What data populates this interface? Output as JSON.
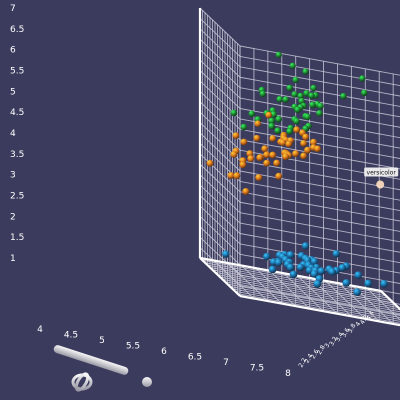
{
  "chart_data": {
    "type": "scatter",
    "title": "",
    "xlabel": "",
    "ylabel": "",
    "zlabel": "",
    "xlim": [
      4,
      8
    ],
    "ylim": [
      1,
      7
    ],
    "zlim": [
      2,
      4.6
    ],
    "x_ticks": [
      "4",
      "4.5",
      "5",
      "5.5",
      "6",
      "6.5",
      "7",
      "7.5",
      "8"
    ],
    "y_ticks": [
      "1",
      "1.5",
      "2",
      "2.5",
      "3",
      "3.5",
      "4",
      "4.5",
      "5",
      "5.5",
      "6",
      "6.5",
      "7"
    ],
    "z_ticks": [
      "2.2",
      "2.4",
      "2.6",
      "2.8",
      "3",
      "3.2",
      "3.4",
      "3.6",
      "3.8",
      "4",
      "4.2",
      "4.4"
    ],
    "grid": true,
    "hover_label": "versicolor",
    "series": [
      {
        "color": "#1e6fa8",
        "points": [
          [
            5.1,
            1.4,
            3.5
          ],
          [
            4.9,
            1.4,
            3.0
          ],
          [
            4.7,
            1.3,
            3.2
          ],
          [
            4.6,
            1.5,
            3.1
          ],
          [
            5.0,
            1.4,
            3.6
          ],
          [
            5.4,
            1.7,
            3.9
          ],
          [
            4.6,
            1.4,
            3.4
          ],
          [
            5.0,
            1.5,
            3.4
          ],
          [
            4.4,
            1.4,
            2.9
          ],
          [
            4.9,
            1.5,
            3.1
          ],
          [
            5.4,
            1.5,
            3.7
          ],
          [
            4.8,
            1.6,
            3.4
          ],
          [
            4.8,
            1.4,
            3.0
          ],
          [
            4.3,
            1.1,
            3.0
          ],
          [
            5.8,
            1.2,
            4.0
          ],
          [
            5.7,
            1.5,
            4.4
          ],
          [
            5.4,
            1.3,
            3.9
          ],
          [
            5.1,
            1.4,
            3.5
          ],
          [
            5.7,
            1.7,
            3.8
          ],
          [
            5.1,
            1.5,
            3.8
          ],
          [
            5.4,
            1.7,
            3.4
          ],
          [
            5.1,
            1.5,
            3.7
          ],
          [
            4.6,
            1.0,
            3.6
          ],
          [
            5.1,
            1.7,
            3.3
          ],
          [
            4.8,
            1.9,
            3.4
          ],
          [
            5.0,
            1.6,
            3.0
          ],
          [
            5.0,
            1.6,
            3.4
          ],
          [
            5.2,
            1.5,
            3.5
          ],
          [
            5.2,
            1.4,
            3.4
          ],
          [
            4.7,
            1.6,
            3.2
          ],
          [
            4.8,
            1.6,
            3.1
          ],
          [
            5.4,
            1.5,
            3.4
          ],
          [
            5.2,
            1.5,
            4.1
          ],
          [
            5.5,
            1.4,
            4.2
          ],
          [
            4.9,
            1.5,
            3.1
          ],
          [
            5.0,
            1.2,
            3.2
          ],
          [
            5.5,
            1.3,
            3.5
          ],
          [
            4.4,
            1.3,
            3.0
          ],
          [
            5.1,
            1.5,
            3.4
          ],
          [
            5.0,
            1.3,
            3.5
          ],
          [
            4.5,
            1.3,
            2.3
          ],
          [
            4.4,
            1.3,
            3.2
          ],
          [
            5.0,
            1.6,
            3.5
          ],
          [
            5.1,
            1.9,
            3.8
          ],
          [
            4.8,
            1.4,
            3.0
          ],
          [
            5.3,
            1.5,
            3.7
          ],
          [
            4.6,
            1.4,
            3.2
          ],
          [
            5.0,
            1.4,
            3.3
          ]
        ]
      },
      {
        "color": "#d8741e",
        "points": [
          [
            7.0,
            4.7,
            3.2
          ],
          [
            6.4,
            4.5,
            3.2
          ],
          [
            6.9,
            4.9,
            3.1
          ],
          [
            5.5,
            4.0,
            2.3
          ],
          [
            6.5,
            4.6,
            2.8
          ],
          [
            5.7,
            4.5,
            2.8
          ],
          [
            6.3,
            4.7,
            3.3
          ],
          [
            4.9,
            3.3,
            2.4
          ],
          [
            6.6,
            4.6,
            2.9
          ],
          [
            5.2,
            3.9,
            2.7
          ],
          [
            5.0,
            3.5,
            2.0
          ],
          [
            5.9,
            4.2,
            3.0
          ],
          [
            6.0,
            4.0,
            2.2
          ],
          [
            6.1,
            4.7,
            2.9
          ],
          [
            5.6,
            3.6,
            2.9
          ],
          [
            6.7,
            4.4,
            3.1
          ],
          [
            5.6,
            4.5,
            3.0
          ],
          [
            5.8,
            4.1,
            2.7
          ],
          [
            6.2,
            4.5,
            2.2
          ],
          [
            5.6,
            3.9,
            2.5
          ],
          [
            5.9,
            4.8,
            3.2
          ],
          [
            6.1,
            4.0,
            2.8
          ],
          [
            6.3,
            4.9,
            2.5
          ],
          [
            6.4,
            4.3,
            2.9
          ],
          [
            6.6,
            4.4,
            3.0
          ],
          [
            6.8,
            4.8,
            2.8
          ],
          [
            6.7,
            5.0,
            3.0
          ],
          [
            6.0,
            4.5,
            2.9
          ],
          [
            5.7,
            3.5,
            2.6
          ],
          [
            5.5,
            3.8,
            2.4
          ],
          [
            5.5,
            3.7,
            2.4
          ],
          [
            5.8,
            3.9,
            2.7
          ],
          [
            6.0,
            5.1,
            2.7
          ],
          [
            5.4,
            4.5,
            3.0
          ],
          [
            6.0,
            4.5,
            3.4
          ],
          [
            6.7,
            4.7,
            3.1
          ],
          [
            6.3,
            4.4,
            2.3
          ],
          [
            5.6,
            4.1,
            3.0
          ],
          [
            5.5,
            4.0,
            2.5
          ],
          [
            5.5,
            4.4,
            2.6
          ],
          [
            6.1,
            4.6,
            3.0
          ],
          [
            5.8,
            4.0,
            2.6
          ],
          [
            5.0,
            3.3,
            2.3
          ],
          [
            5.6,
            4.2,
            2.7
          ],
          [
            5.7,
            4.2,
            3.0
          ],
          [
            6.2,
            4.3,
            2.9
          ],
          [
            5.1,
            3.0,
            2.5
          ],
          [
            5.7,
            4.1,
            2.8
          ]
        ]
      },
      {
        "color": "#1f8a35",
        "points": [
          [
            6.3,
            6.0,
            3.3
          ],
          [
            5.8,
            5.1,
            2.7
          ],
          [
            7.1,
            5.9,
            3.0
          ],
          [
            6.3,
            5.6,
            2.9
          ],
          [
            6.5,
            5.8,
            3.0
          ],
          [
            7.6,
            6.6,
            3.0
          ],
          [
            4.9,
            4.5,
            2.5
          ],
          [
            7.3,
            6.3,
            2.9
          ],
          [
            6.7,
            5.8,
            2.5
          ],
          [
            7.2,
            6.1,
            3.6
          ],
          [
            6.5,
            5.1,
            3.2
          ],
          [
            6.4,
            5.3,
            2.7
          ],
          [
            6.8,
            5.5,
            3.0
          ],
          [
            5.7,
            5.0,
            2.5
          ],
          [
            5.8,
            5.1,
            2.8
          ],
          [
            6.4,
            5.3,
            3.2
          ],
          [
            6.5,
            5.5,
            3.0
          ],
          [
            7.7,
            6.7,
            3.8
          ],
          [
            7.7,
            6.9,
            2.6
          ],
          [
            6.0,
            5.0,
            2.2
          ],
          [
            6.9,
            5.7,
            3.2
          ],
          [
            5.6,
            4.9,
            2.8
          ],
          [
            7.7,
            6.7,
            2.8
          ],
          [
            6.3,
            4.9,
            2.7
          ],
          [
            6.7,
            5.7,
            3.3
          ],
          [
            7.2,
            6.0,
            3.2
          ],
          [
            6.2,
            4.8,
            2.8
          ],
          [
            6.1,
            4.9,
            3.0
          ],
          [
            6.4,
            5.6,
            2.8
          ],
          [
            7.2,
            5.8,
            3.0
          ],
          [
            7.4,
            6.1,
            2.8
          ],
          [
            7.9,
            6.4,
            3.8
          ],
          [
            6.4,
            5.6,
            2.8
          ],
          [
            6.3,
            5.1,
            2.8
          ],
          [
            6.1,
            5.6,
            2.6
          ],
          [
            7.7,
            6.1,
            3.0
          ],
          [
            6.3,
            5.6,
            3.4
          ],
          [
            6.4,
            5.5,
            3.1
          ],
          [
            6.0,
            4.8,
            3.0
          ],
          [
            6.9,
            5.4,
            3.1
          ],
          [
            6.7,
            5.6,
            3.1
          ],
          [
            6.9,
            5.1,
            3.1
          ],
          [
            6.8,
            5.9,
            3.2
          ],
          [
            6.7,
            5.7,
            3.3
          ],
          [
            6.7,
            5.2,
            3.0
          ],
          [
            6.3,
            5.0,
            2.5
          ],
          [
            6.5,
            5.2,
            3.0
          ],
          [
            6.2,
            5.4,
            3.4
          ]
        ]
      }
    ]
  },
  "toolbar": {
    "icons": [
      "rotate-tool-icon",
      "orbit-ring-icon",
      "sphere-icon"
    ]
  }
}
